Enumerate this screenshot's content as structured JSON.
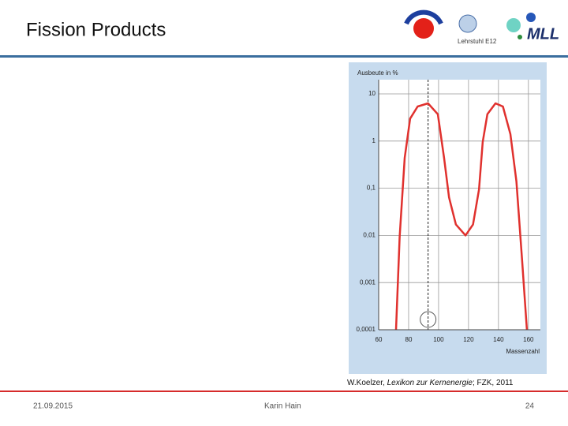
{
  "slide": {
    "title": "Fission Products",
    "logos": {
      "chair": "Lehrstuhl E12",
      "lab": "MLL"
    },
    "citation": {
      "author": "W.Koelzer, ",
      "work": "Lexikon zur Kernenergie",
      "rest": "; FZK, 2011"
    },
    "footer": {
      "date": "21.09.2015",
      "author": "Karin Hain",
      "page": "24"
    }
  },
  "chart_data": {
    "type": "line",
    "y_label": "Ausbeute in %",
    "x_label": "Massenzahl",
    "x": [
      71.6,
      74,
      77.4,
      81,
      86,
      93,
      99.5,
      103.7,
      107,
      111.6,
      118,
      123,
      127,
      129.5,
      132.6,
      138,
      143,
      148,
      152,
      155.8,
      159
    ],
    "series": [
      {
        "color": "#e0312e",
        "values": [
          0.0001,
          0.0093,
          0.44,
          3.0,
          5.4,
          6.3,
          3.7,
          0.44,
          0.064,
          0.017,
          0.01,
          0.017,
          0.094,
          0.96,
          3.7,
          6.3,
          5.4,
          1.4,
          0.14,
          0.003,
          0.0001
        ]
      }
    ],
    "marker_x": 93,
    "xlim": [
      60,
      168
    ],
    "xticks": [
      60,
      80,
      100,
      120,
      140,
      160
    ],
    "ylim": [
      0.0001,
      20
    ],
    "log_y": true,
    "yticks": [
      {
        "value": 0.0001,
        "label": "0,0001"
      },
      {
        "value": 0.001,
        "label": "0,001"
      },
      {
        "value": 0.01,
        "label": "0,01"
      },
      {
        "value": 0.1,
        "label": "0,1"
      },
      1,
      10
    ],
    "grid": true
  }
}
